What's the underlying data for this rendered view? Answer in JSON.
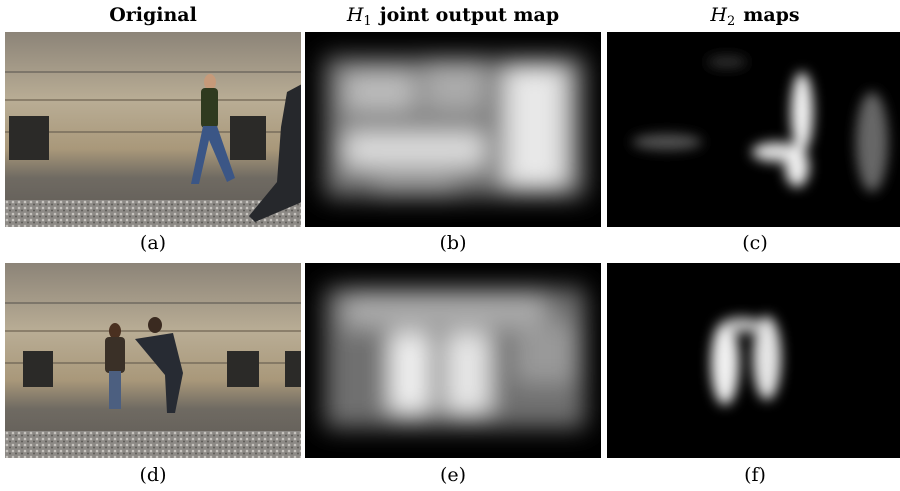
{
  "headers": [
    {
      "text": "Original"
    },
    {
      "var": "H",
      "sub": "1",
      "rest": "joint output map"
    },
    {
      "var": "H",
      "sub": "2",
      "rest": "maps"
    }
  ],
  "captions": [
    "(a)",
    "(b)",
    "(c)",
    "(d)",
    "(e)",
    "(f)"
  ]
}
